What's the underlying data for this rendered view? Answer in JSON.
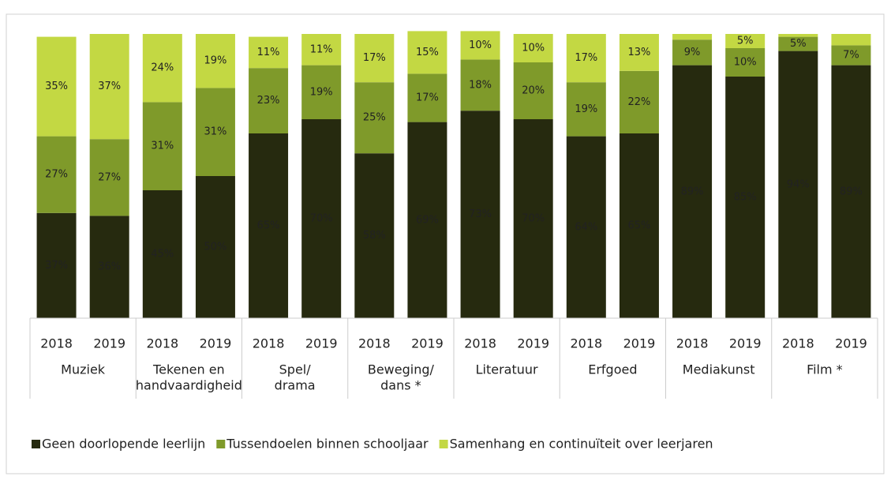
{
  "chart_data": {
    "type": "stacked_bar",
    "categories": [
      "2018",
      "2019",
      "2018",
      "2019",
      "2018",
      "2019",
      "2018",
      "2019",
      "2018",
      "2019",
      "2018",
      "2019",
      "2018",
      "2019",
      "2018",
      "2019"
    ],
    "groups": [
      [
        "Muziek"
      ],
      [
        "Tekenen en",
        "handvaardigheid"
      ],
      [
        "Spel/",
        "drama"
      ],
      [
        "Beweging/",
        "dans *"
      ],
      [
        "Literatuur"
      ],
      [
        "Erfgoed"
      ],
      [
        "Mediakunst"
      ],
      [
        "Film *"
      ]
    ],
    "ylim": [
      0,
      100
    ],
    "series": [
      {
        "name": "Geen doorlopende leerlijn",
        "color": "#262a0f",
        "values": [
          37,
          36,
          45,
          50,
          65,
          70,
          58,
          69,
          73,
          70,
          64,
          65,
          89,
          85,
          94,
          89
        ],
        "value_labels": [
          "37%",
          "36%",
          "45%",
          "50%",
          "65%",
          "70%",
          "58%",
          "69%",
          "73%",
          "70%",
          "64%",
          "65%",
          "89%",
          "85%",
          "94%",
          "89%"
        ]
      },
      {
        "name": "Tussendoelen binnen schooljaar",
        "color": "#7f9a2a",
        "values": [
          27,
          27,
          31,
          31,
          23,
          19,
          25,
          17,
          18,
          20,
          19,
          22,
          9,
          10,
          5,
          7
        ],
        "value_labels": [
          "27%",
          "27%",
          "31%",
          "31%",
          "23%",
          "19%",
          "25%",
          "17%",
          "18%",
          "20%",
          "19%",
          "22%",
          "9%",
          "10%",
          "5%",
          "7%"
        ]
      },
      {
        "name": "Samenhang en continuïteit over leerjaren",
        "color": "#c3d843",
        "values": [
          35,
          37,
          24,
          19,
          11,
          11,
          17,
          15,
          10,
          10,
          17,
          13,
          2,
          5,
          1,
          4
        ],
        "value_labels": [
          "35%",
          "37%",
          "24%",
          "19%",
          "11%",
          "11%",
          "17%",
          "15%",
          "10%",
          "10%",
          "17%",
          "13%",
          null,
          "5%",
          null,
          null
        ]
      }
    ]
  }
}
